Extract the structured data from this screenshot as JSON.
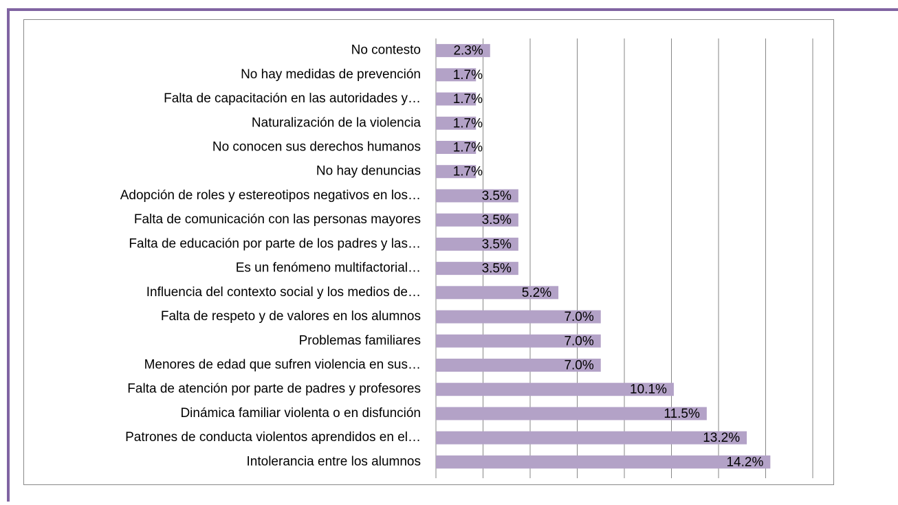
{
  "chart_data": {
    "type": "bar",
    "orientation": "horizontal",
    "categories": [
      "No contesto",
      "No hay medidas de prevención",
      "Falta de capacitación en las autoridades y…",
      "Naturalización de la violencia",
      "No conocen sus derechos humanos",
      "No hay denuncias",
      "Adopción de roles y estereotipos negativos en los…",
      "Falta de comunicación con las personas mayores",
      "Falta de educación por parte de los padres y las…",
      "Es un fenómeno multifactorial…",
      "Influencia del contexto social y los medios de…",
      "Falta de respeto y de valores en los alumnos",
      "Problemas familiares",
      "Menores de edad que sufren violencia en sus…",
      "Falta de atención por parte de padres y profesores",
      "Dinámica familiar violenta o en disfunción",
      "Patrones de conducta violentos aprendidos en el…",
      "Intolerancia entre los alumnos"
    ],
    "values": [
      2.3,
      1.7,
      1.7,
      1.7,
      1.7,
      1.7,
      3.5,
      3.5,
      3.5,
      3.5,
      5.2,
      7.0,
      7.0,
      7.0,
      10.1,
      11.5,
      13.2,
      14.2
    ],
    "value_labels": [
      "2.3%",
      "1.7%",
      "1.7%",
      "1.7%",
      "1.7%",
      "1.7%",
      "3.5%",
      "3.5%",
      "3.5%",
      "3.5%",
      "5.2%",
      "7.0%",
      "7.0%",
      "7.0%",
      "10.1%",
      "11.5%",
      "13.2%",
      "14.2%"
    ],
    "color": "#b3a2c7",
    "xlim": [
      0,
      16
    ],
    "xticks": [
      0,
      2,
      4,
      6,
      8,
      10,
      12,
      14,
      16
    ],
    "grid": true
  }
}
